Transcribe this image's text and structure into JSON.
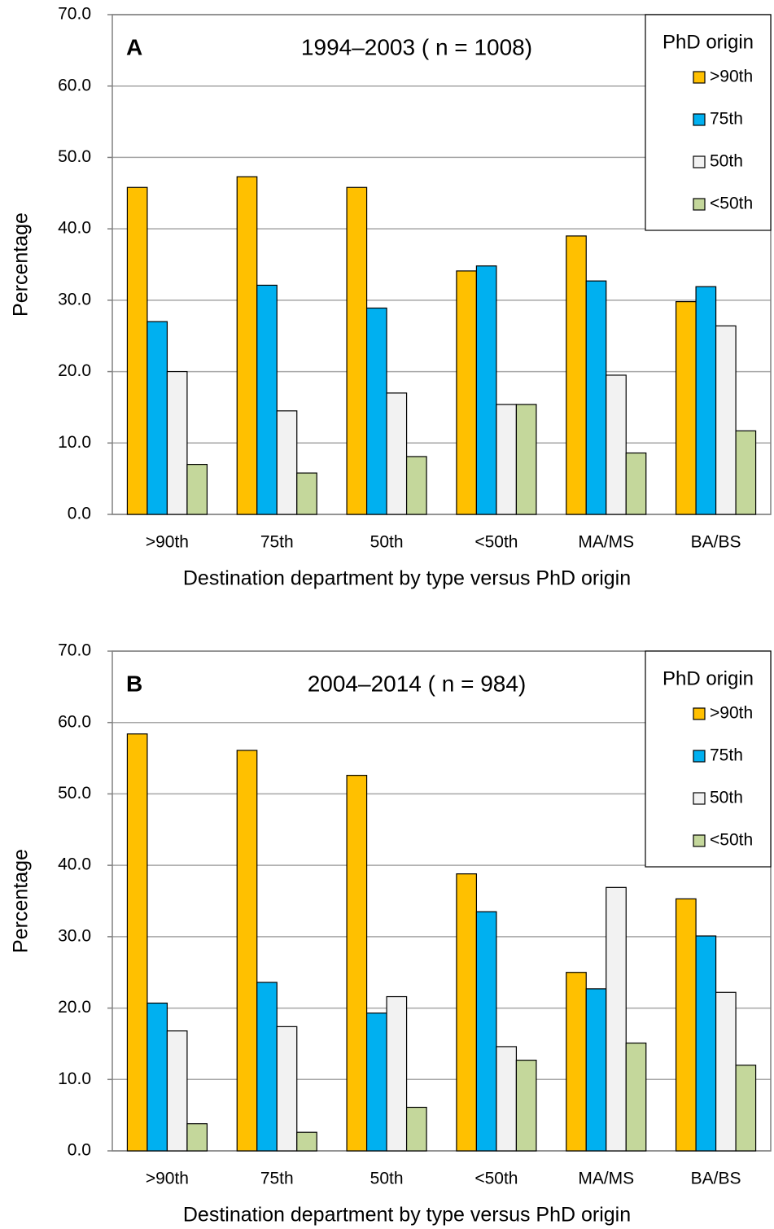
{
  "chart_data": [
    {
      "type": "bar",
      "panel": "A",
      "title": "1994–2003 ( n = 1008)",
      "x_label": "Destination department by type versus PhD origin",
      "y_label": "Percentage",
      "categories": [
        ">90th",
        "75th",
        "50th",
        "<50th",
        "MA/MS",
        "BA/BS"
      ],
      "series": [
        {
          "name": ">90th",
          "color": "#FFC000",
          "values": [
            45.8,
            47.3,
            45.8,
            34.1,
            39.0,
            29.8
          ]
        },
        {
          "name": "75th",
          "color": "#00B0F0",
          "values": [
            27.0,
            32.1,
            28.9,
            34.8,
            32.7,
            31.9
          ]
        },
        {
          "name": "50th",
          "color": "#F2F2F2",
          "values": [
            20.0,
            14.5,
            17.0,
            15.4,
            19.5,
            26.4
          ]
        },
        {
          "name": "<50th",
          "color": "#C4D79B",
          "values": [
            7.0,
            5.8,
            8.1,
            15.4,
            8.6,
            11.7
          ]
        }
      ],
      "legend_title": "PhD origin",
      "legend": "upper right",
      "ylim": [
        0,
        70
      ],
      "yticks": [
        {
          "value": 0,
          "label": "0.0"
        },
        {
          "value": 10,
          "label": "10.0"
        },
        {
          "value": 20,
          "label": "20.0"
        },
        {
          "value": 30,
          "label": "30.0"
        },
        {
          "value": 40,
          "label": "40.0"
        },
        {
          "value": 50,
          "label": "50.0"
        },
        {
          "value": 60,
          "label": "60.0"
        },
        {
          "value": 70,
          "label": "70.0"
        }
      ],
      "grid": true
    },
    {
      "type": "bar",
      "panel": "B",
      "title": "2004–2014 ( n = 984)",
      "x_label": "Destination department by type versus PhD origin",
      "y_label": "Percentage",
      "categories": [
        ">90th",
        "75th",
        "50th",
        "<50th",
        "MA/MS",
        "BA/BS"
      ],
      "series": [
        {
          "name": ">90th",
          "color": "#FFC000",
          "values": [
            58.4,
            56.1,
            52.6,
            38.8,
            25.0,
            35.3
          ]
        },
        {
          "name": "75th",
          "color": "#00B0F0",
          "values": [
            20.7,
            23.6,
            19.3,
            33.5,
            22.7,
            30.1
          ]
        },
        {
          "name": "50th",
          "color": "#F2F2F2",
          "values": [
            16.8,
            17.4,
            21.6,
            14.6,
            36.9,
            22.2
          ]
        },
        {
          "name": "<50th",
          "color": "#C4D79B",
          "values": [
            3.8,
            2.6,
            6.1,
            12.7,
            15.1,
            12.0
          ]
        }
      ],
      "legend_title": "PhD origin",
      "legend": "upper right",
      "ylim": [
        0,
        70
      ],
      "yticks": [
        {
          "value": 0,
          "label": "0.0"
        },
        {
          "value": 10,
          "label": "10.0"
        },
        {
          "value": 20,
          "label": "20.0"
        },
        {
          "value": 30,
          "label": "30.0"
        },
        {
          "value": 40,
          "label": "40.0"
        },
        {
          "value": 50,
          "label": "50.0"
        },
        {
          "value": 60,
          "label": "60.0"
        },
        {
          "value": 70,
          "label": "70.0"
        }
      ],
      "grid": true
    }
  ]
}
